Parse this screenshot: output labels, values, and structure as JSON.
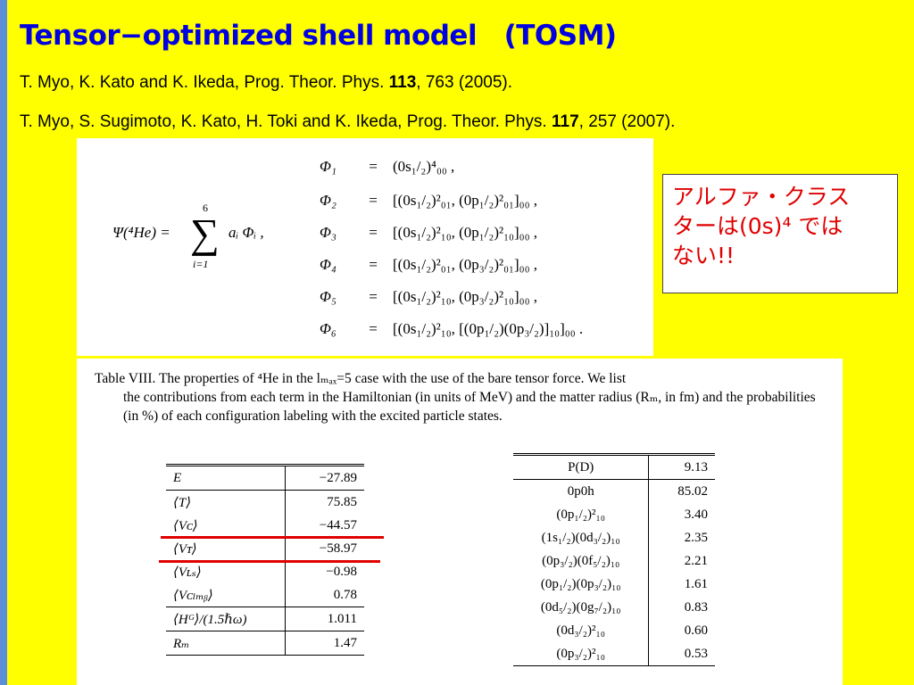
{
  "title": "Tensor−optimized shell model　(TOSM)",
  "refs": [
    {
      "authors": "T. Myo, K. Kato and K. Ikeda, Prog. Theor. Phys. ",
      "volume": "113",
      "rest": ", 763 (2005)."
    },
    {
      "authors": "T. Myo, S. Sugimoto, K. Kato, H. Toki and K. Ikeda, Prog. Theor. Phys. ",
      "volume": "117",
      "rest": ", 257 (2007)."
    }
  ],
  "equation": {
    "psi": "Ψ(⁴He) =",
    "sum_symbol": "∑",
    "sum_upper": "6",
    "sum_lower": "i=1",
    "sum_term": "aᵢ Φᵢ ,",
    "rows": [
      {
        "lhs": "Φ₁",
        "eq": "=",
        "rhs": "(0s₁/₂)⁴₀₀ ,"
      },
      {
        "lhs": "Φ₂",
        "eq": "=",
        "rhs": "[(0s₁/₂)²₀₁, (0p₁/₂)²₀₁]₀₀ ,"
      },
      {
        "lhs": "Φ₃",
        "eq": "=",
        "rhs": "[(0s₁/₂)²₁₀, (0p₁/₂)²₁₀]₀₀ ,"
      },
      {
        "lhs": "Φ₄",
        "eq": "=",
        "rhs": "[(0s₁/₂)²₀₁, (0p₃/₂)²₀₁]₀₀ ,"
      },
      {
        "lhs": "Φ₅",
        "eq": "=",
        "rhs": "[(0s₁/₂)²₁₀, (0p₃/₂)²₁₀]₀₀ ,"
      },
      {
        "lhs": "Φ₆",
        "eq": "=",
        "rhs": "[(0s₁/₂)²₁₀, [(0p₁/₂)(0p₃/₂)]₁₀]₀₀ ."
      }
    ]
  },
  "callout": {
    "line1": "アルファ・クラス",
    "line2": "ターは(0s)⁴ では",
    "line3": "ない!!"
  },
  "table_caption": {
    "first": "Table VIII.   The properties of ⁴He in the lₘₐₓ=5 case with the use of the bare tensor force. We list",
    "rest": "the contributions from each term in the Hamiltonian (in units of MeV) and the matter radius (Rₘ, in fm) and the probabilities (in %) of each configuration labeling with the excited particle states."
  },
  "energy_table": {
    "header": {
      "label": "E",
      "value": "−27.89"
    },
    "rows": [
      {
        "label": "⟨T⟩",
        "value": "75.85"
      },
      {
        "label": "⟨Vᴄ⟩",
        "value": "−44.57"
      },
      {
        "label": "⟨Vᴛ⟩",
        "value": "−58.97"
      },
      {
        "label": "⟨Vʟₛ⟩",
        "value": "−0.98"
      },
      {
        "label": "⟨Vᴄₗₘᵦ⟩",
        "value": "0.78"
      }
    ],
    "footer": [
      {
        "label": "⟨Hᴳ⟩/(1.5ℏω)",
        "value": "1.011"
      },
      {
        "label": "Rₘ",
        "value": "1.47"
      }
    ]
  },
  "prob_table": {
    "header": {
      "label": "P(D)",
      "value": "9.13"
    },
    "rows": [
      {
        "label": "0p0h",
        "value": "85.02"
      },
      {
        "label": "(0p₁/₂)²₁₀",
        "value": "3.40"
      },
      {
        "label": "(1s₁/₂)(0d₃/₂)₁₀",
        "value": "2.35"
      },
      {
        "label": "(0p₃/₂)(0f₅/₂)₁₀",
        "value": "2.21"
      },
      {
        "label": "(0p₁/₂)(0p₃/₂)₁₀",
        "value": "1.61"
      },
      {
        "label": "(0d₅/₂)(0g₇/₂)₁₀",
        "value": "0.83"
      },
      {
        "label": "(0d₃/₂)²₁₀",
        "value": "0.60"
      },
      {
        "label": "(0p₃/₂)²₁₀",
        "value": "0.53"
      }
    ]
  },
  "colors": {
    "background": "#ffff00",
    "title": "#0000e0",
    "callout_text": "#e00000",
    "underline": "#e00000"
  }
}
